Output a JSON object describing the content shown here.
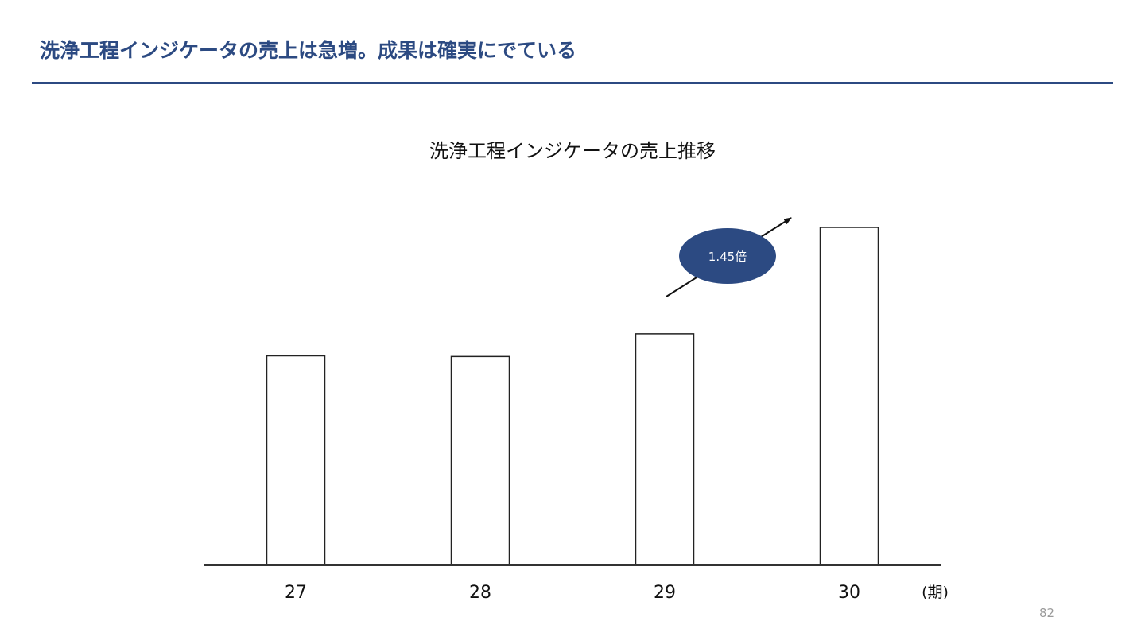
{
  "slide": {
    "title": "洗浄工程インジケータの売上は急増。成果は確実にでている",
    "page_number": "82",
    "accent_color": "#2c4a82"
  },
  "chart_data": {
    "type": "bar",
    "title": "洗浄工程インジケータの売上推移",
    "categories": [
      "27",
      "28",
      "29",
      "30"
    ],
    "values": [
      62,
      61.8,
      68.5,
      100
    ],
    "xlabel": "(期)",
    "ylabel": "",
    "ylim": [
      0,
      100
    ],
    "grid": false,
    "legend": "none",
    "bar_fill": "#ffffff",
    "bar_stroke": "#222222",
    "annotation": {
      "text": "1.45倍",
      "from_category": "29",
      "to_category": "30",
      "ratio": 1.45,
      "fill": "#2c4a82",
      "text_color": "#ffffff"
    }
  }
}
